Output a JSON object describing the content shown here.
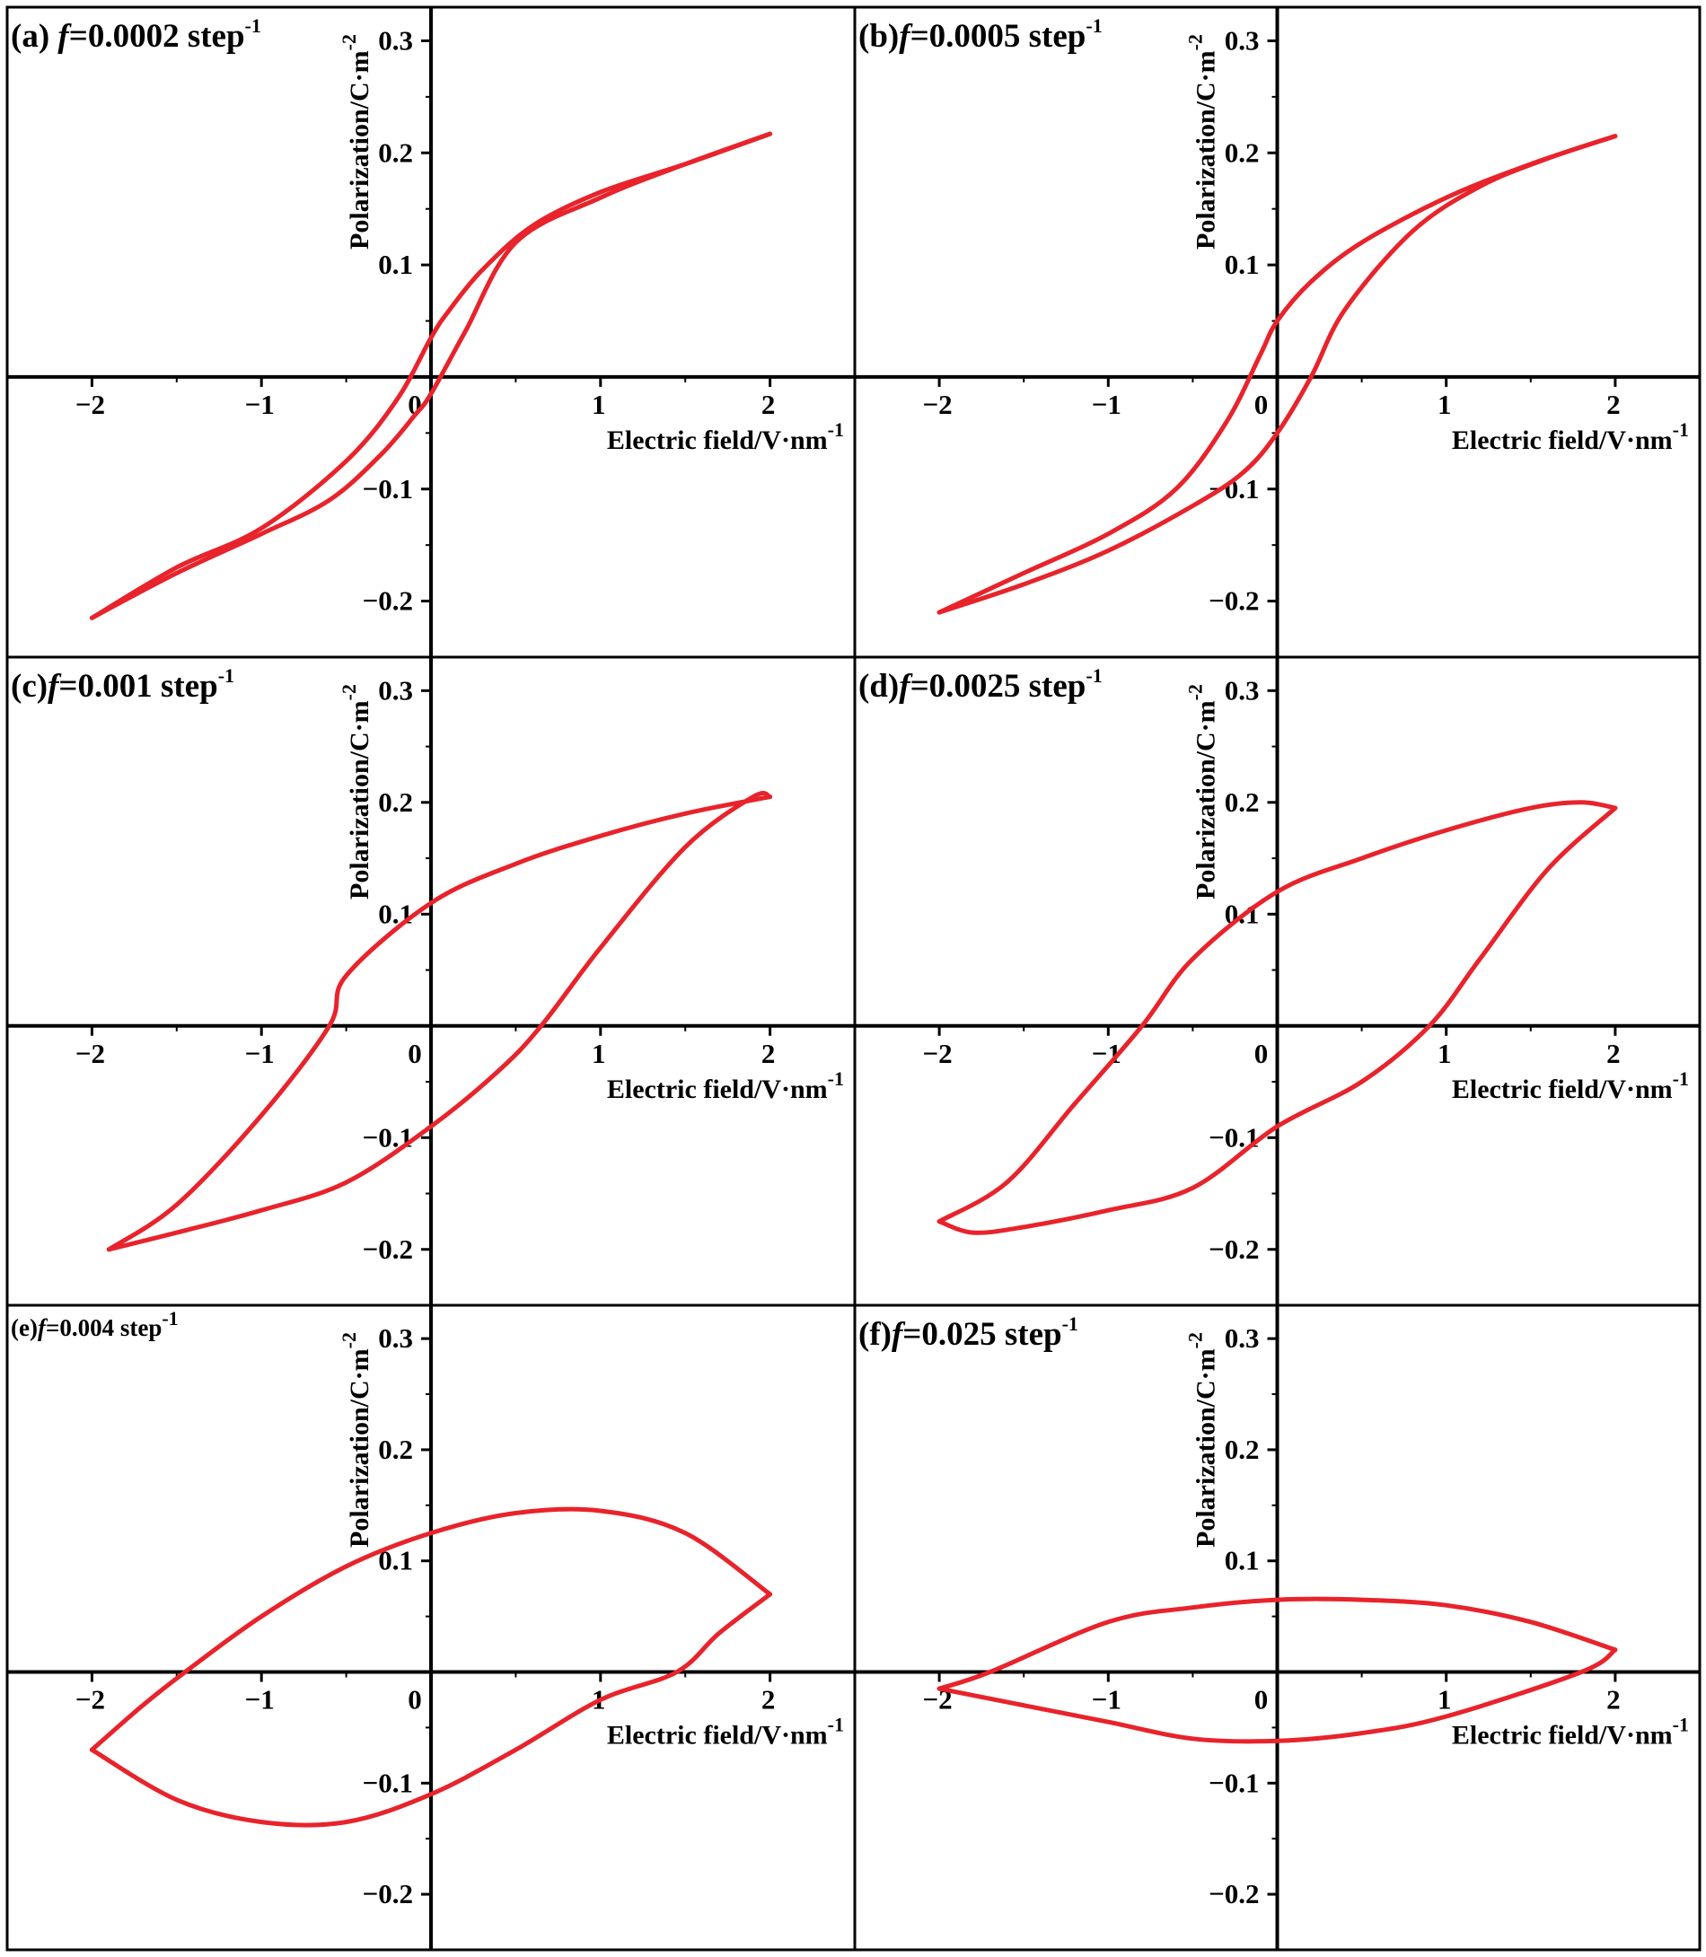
{
  "figure": {
    "style": {
      "curve_color": "#e8232b",
      "axis_color": "#000000",
      "background": "#ffffff"
    },
    "common_axes": {
      "x_label": "Electric field/V·nm",
      "x_label_exponent": "-1",
      "y_label": "Polarization/C·m",
      "y_label_exponent": "-2",
      "x_ticks": [
        "−2",
        "−1",
        "0",
        "1",
        "2"
      ],
      "y_ticks": [
        "0.3",
        "0.2",
        "0.1",
        "−0.1",
        "−0.2"
      ]
    }
  },
  "chart_data": [
    {
      "type": "line",
      "panel": "(a)",
      "title_prefix": "(a) ",
      "title_italic": "f",
      "title_main": "=0.0002 step",
      "title_exponent": "-1",
      "xlabel": "Electric field/V·nm⁻¹",
      "ylabel": "Polarization/C·m⁻²",
      "xlim": [
        -2.5,
        2.5
      ],
      "ylim": [
        -0.25,
        0.33
      ],
      "x_ticks": [
        -2,
        -1,
        0,
        1,
        2
      ],
      "y_ticks": [
        -0.2,
        -0.1,
        0.1,
        0.2,
        0.3
      ],
      "series": [
        {
          "x": [
            2.0,
            1.5,
            1.0,
            0.6,
            0.3,
            0.1,
            0.0,
            -0.2,
            -0.5,
            -1.0,
            -1.5,
            -2.0
          ],
          "y": [
            0.217,
            0.19,
            0.165,
            0.135,
            0.095,
            0.058,
            0.035,
            -0.02,
            -0.075,
            -0.135,
            -0.17,
            -0.215
          ]
        },
        {
          "x": [
            -2.0,
            -1.5,
            -1.0,
            -0.6,
            -0.3,
            -0.1,
            0.0,
            0.2,
            0.5,
            1.0,
            1.5,
            2.0
          ],
          "y": [
            -0.215,
            -0.175,
            -0.14,
            -0.11,
            -0.07,
            -0.035,
            -0.015,
            0.04,
            0.12,
            0.16,
            0.19,
            0.217
          ]
        }
      ]
    },
    {
      "type": "line",
      "panel": "(b)",
      "title_prefix": "(b)",
      "title_italic": "f",
      "title_main": "=0.0005 step",
      "title_exponent": "-1",
      "xlabel": "Electric field/V·nm⁻¹",
      "ylabel": "Polarization/C·m⁻²",
      "xlim": [
        -2.5,
        2.5
      ],
      "ylim": [
        -0.25,
        0.33
      ],
      "x_ticks": [
        -2,
        -1,
        0,
        1,
        2
      ],
      "y_ticks": [
        -0.2,
        -0.1,
        0.1,
        0.2,
        0.3
      ],
      "series": [
        {
          "x": [
            2.0,
            1.5,
            1.0,
            0.5,
            0.2,
            0.0,
            -0.1,
            -0.3,
            -0.6,
            -1.0,
            -1.5,
            -2.0
          ],
          "y": [
            0.215,
            0.19,
            0.16,
            0.12,
            0.085,
            0.05,
            0.02,
            -0.04,
            -0.1,
            -0.14,
            -0.175,
            -0.21
          ]
        },
        {
          "x": [
            -2.0,
            -1.5,
            -1.0,
            -0.5,
            -0.2,
            0.0,
            0.2,
            0.4,
            0.8,
            1.2,
            1.6,
            2.0
          ],
          "y": [
            -0.21,
            -0.185,
            -0.155,
            -0.115,
            -0.085,
            -0.05,
            0.0,
            0.06,
            0.13,
            0.17,
            0.195,
            0.215
          ]
        }
      ]
    },
    {
      "type": "line",
      "panel": "(c)",
      "title_prefix": "(c)",
      "title_italic": "f",
      "title_main": "=0.001 step",
      "title_exponent": "-1",
      "xlabel": "Electric field/V·nm⁻¹",
      "ylabel": "Polarization/C·m⁻²",
      "xlim": [
        -2.5,
        2.5
      ],
      "ylim": [
        -0.25,
        0.33
      ],
      "x_ticks": [
        -2,
        -1,
        0,
        1,
        2
      ],
      "y_ticks": [
        -0.2,
        -0.1,
        0.1,
        0.2,
        0.3
      ],
      "series": [
        {
          "x": [
            2.0,
            1.5,
            1.0,
            0.5,
            0.0,
            -0.5,
            -0.6,
            -1.0,
            -1.5,
            -1.9
          ],
          "y": [
            0.205,
            0.19,
            0.17,
            0.145,
            0.11,
            0.045,
            0.0,
            -0.08,
            -0.16,
            -0.2
          ]
        },
        {
          "x": [
            -1.9,
            -1.5,
            -1.0,
            -0.5,
            0.0,
            0.4,
            0.65,
            1.0,
            1.5,
            1.9,
            2.0
          ],
          "y": [
            -0.2,
            -0.185,
            -0.165,
            -0.14,
            -0.09,
            -0.04,
            0.0,
            0.07,
            0.16,
            0.205,
            0.205
          ]
        }
      ]
    },
    {
      "type": "line",
      "panel": "(d)",
      "title_prefix": "(d)",
      "title_italic": "f",
      "title_main": "=0.0025 step",
      "title_exponent": "-1",
      "xlabel": "Electric field/V·nm⁻¹",
      "ylabel": "Polarization/C·m⁻²",
      "xlim": [
        -2.5,
        2.5
      ],
      "ylim": [
        -0.25,
        0.33
      ],
      "x_ticks": [
        -2,
        -1,
        0,
        1,
        2
      ],
      "y_ticks": [
        -0.2,
        -0.1,
        0.1,
        0.2,
        0.3
      ],
      "series": [
        {
          "x": [
            2.0,
            1.8,
            1.5,
            1.0,
            0.5,
            0.0,
            -0.5,
            -0.8,
            -1.2,
            -1.6,
            -2.0
          ],
          "y": [
            0.195,
            0.2,
            0.195,
            0.175,
            0.15,
            0.12,
            0.06,
            0.0,
            -0.07,
            -0.14,
            -0.175
          ]
        },
        {
          "x": [
            -2.0,
            -1.8,
            -1.5,
            -1.0,
            -0.5,
            0.0,
            0.5,
            0.9,
            1.2,
            1.6,
            2.0
          ],
          "y": [
            -0.175,
            -0.185,
            -0.18,
            -0.165,
            -0.145,
            -0.09,
            -0.05,
            0.0,
            0.06,
            0.14,
            0.195
          ]
        }
      ]
    },
    {
      "type": "line",
      "panel": "(e)",
      "title_prefix": "(e)",
      "title_italic": "f",
      "title_main": "=0.004 step",
      "title_exponent": "-1",
      "xlabel": "Electric field/V·nm⁻¹",
      "ylabel": "Polarization/C·m⁻²",
      "xlim": [
        -2.5,
        2.5
      ],
      "ylim": [
        -0.25,
        0.33
      ],
      "x_ticks": [
        -2,
        -1,
        0,
        1,
        2
      ],
      "y_ticks": [
        -0.2,
        -0.1,
        0.1,
        0.2,
        0.3
      ],
      "series": [
        {
          "x": [
            2.0,
            1.5,
            1.0,
            0.5,
            0.0,
            -0.5,
            -1.0,
            -1.45,
            -1.7,
            -2.0
          ],
          "y": [
            0.07,
            0.125,
            0.145,
            0.143,
            0.125,
            0.095,
            0.05,
            0.0,
            -0.03,
            -0.07
          ]
        },
        {
          "x": [
            -2.0,
            -1.5,
            -1.0,
            -0.5,
            0.0,
            0.5,
            1.0,
            1.45,
            1.7,
            2.0
          ],
          "y": [
            -0.07,
            -0.115,
            -0.135,
            -0.135,
            -0.11,
            -0.07,
            -0.025,
            0.0,
            0.035,
            0.07
          ]
        }
      ]
    },
    {
      "type": "line",
      "panel": "(f)",
      "title_prefix": "(f)",
      "title_italic": "f",
      "title_main": "=0.025 step",
      "title_exponent": "-1",
      "xlabel": "Electric field/V·nm⁻¹",
      "ylabel": "Polarization/C·m⁻²",
      "xlim": [
        -2.5,
        2.5
      ],
      "ylim": [
        -0.25,
        0.33
      ],
      "x_ticks": [
        -2,
        -1,
        0,
        1,
        2
      ],
      "y_ticks": [
        -0.2,
        -0.1,
        0.1,
        0.2,
        0.3
      ],
      "series": [
        {
          "x": [
            2.0,
            1.5,
            1.0,
            0.5,
            0.0,
            -0.5,
            -1.0,
            -1.7,
            -2.0
          ],
          "y": [
            0.02,
            0.045,
            0.06,
            0.065,
            0.065,
            0.058,
            0.045,
            0.0,
            -0.015
          ]
        },
        {
          "x": [
            -2.0,
            -1.5,
            -1.0,
            -0.5,
            0.0,
            0.5,
            1.0,
            1.8,
            2.0
          ],
          "y": [
            -0.015,
            -0.03,
            -0.045,
            -0.06,
            -0.062,
            -0.055,
            -0.04,
            0.0,
            0.02
          ]
        }
      ]
    }
  ]
}
